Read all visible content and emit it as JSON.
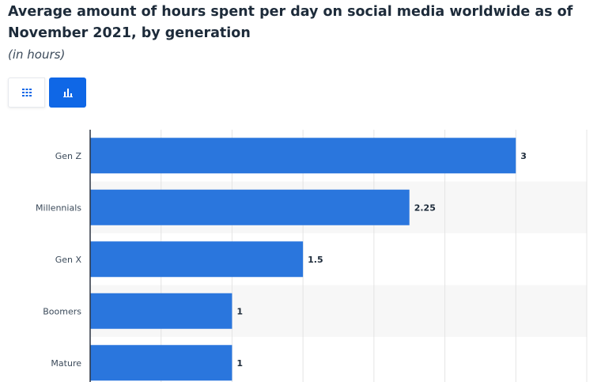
{
  "title": "Average amount of hours spent per day on social media worldwide as of November 2021, by generation",
  "subtitle": "(in hours)",
  "view_toggle": {
    "table_icon": "table-grid-icon",
    "chart_icon": "bar-chart-icon",
    "active": "chart",
    "active_color": "#0f67e6"
  },
  "chart_data": {
    "type": "bar",
    "orientation": "horizontal",
    "categories": [
      "Gen Z",
      "Millennials",
      "Gen X",
      "Boomers",
      "Mature"
    ],
    "values": [
      3,
      2.25,
      1.5,
      1,
      1
    ],
    "value_labels": [
      "3",
      "2.25",
      "1.5",
      "1",
      "1"
    ],
    "title": "Average amount of hours spent per day on social media worldwide as of November 2021, by generation",
    "subtitle": "(in hours)",
    "xlim": [
      0,
      3.5
    ],
    "grid": true,
    "bar_color": "#2a76dd",
    "alt_row_color": "#f7f7f7"
  }
}
